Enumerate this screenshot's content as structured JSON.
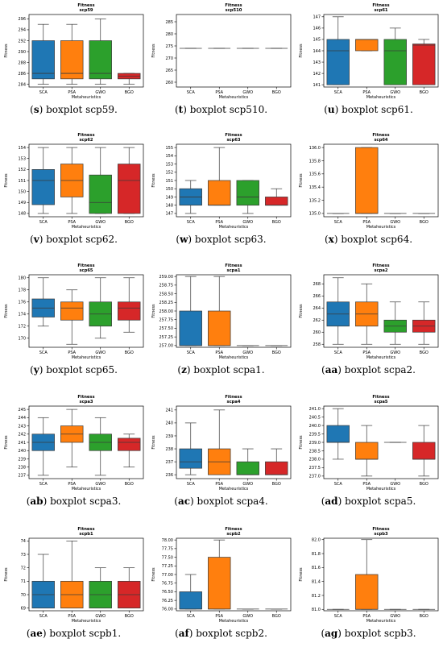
{
  "colors": {
    "SCA": "#1f77b4",
    "PSA": "#ff7f0e",
    "GWO": "#2ca02c",
    "BGO": "#d62728"
  },
  "chart_data": [
    {
      "type": "boxplot",
      "label": "s",
      "caption": "boxplot scp59.",
      "title": "Fitness",
      "subtitle": "scp59",
      "xlabel": "Metaheuristics",
      "ylabel": "Fitness",
      "categories": [
        "SCA",
        "PSA",
        "GWO",
        "BGO"
      ],
      "ylim": [
        283.5,
        296.8
      ],
      "yticks": [
        284,
        286,
        288,
        290,
        292,
        294,
        296
      ],
      "yticklabels": [
        "284",
        "286",
        "288",
        "290",
        "292",
        "294",
        "296"
      ],
      "boxes": [
        {
          "min": 284,
          "q1": 285,
          "median": 286,
          "q3": 292,
          "max": 295
        },
        {
          "min": 284,
          "q1": 285,
          "median": 286,
          "q3": 292,
          "max": 295
        },
        {
          "min": 284,
          "q1": 285,
          "median": 286,
          "q3": 292,
          "max": 296
        },
        {
          "min": 284,
          "q1": 285,
          "median": 285.5,
          "q3": 286,
          "max": 286
        }
      ]
    },
    {
      "type": "boxplot",
      "label": "t",
      "caption": "boxplot scp510.",
      "title": "Fitness",
      "subtitle": "scp510",
      "xlabel": "Metaheuristics",
      "ylabel": "Fitness",
      "categories": [
        "SCA",
        "PSA",
        "GWO",
        "BGO"
      ],
      "ylim": [
        258,
        288
      ],
      "yticks": [
        260,
        265,
        270,
        275,
        280,
        285
      ],
      "yticklabels": [
        "260",
        "265",
        "270",
        "275",
        "280",
        "285"
      ],
      "boxes": [
        {
          "min": 274,
          "q1": 274,
          "median": 274,
          "q3": 274,
          "max": 274
        },
        {
          "min": 274,
          "q1": 274,
          "median": 274,
          "q3": 274,
          "max": 274
        },
        {
          "min": 274,
          "q1": 274,
          "median": 274,
          "q3": 274,
          "max": 274
        },
        {
          "min": 274,
          "q1": 274,
          "median": 274,
          "q3": 274,
          "max": 274
        }
      ]
    },
    {
      "type": "boxplot",
      "label": "u",
      "caption": "boxplot scp61.",
      "title": "Fitness",
      "subtitle": "scp61",
      "xlabel": "Metaheuristics",
      "ylabel": "Fitness",
      "categories": [
        "SCA",
        "PSA",
        "GWO",
        "BGO"
      ],
      "ylim": [
        140.8,
        147.2
      ],
      "yticks": [
        141,
        142,
        143,
        144,
        145,
        146,
        147
      ],
      "yticklabels": [
        "141",
        "142",
        "143",
        "144",
        "145",
        "146",
        "147"
      ],
      "boxes": [
        {
          "min": 141,
          "q1": 141,
          "median": 144,
          "q3": 145,
          "max": 147
        },
        {
          "min": 144,
          "q1": 144,
          "median": 145,
          "q3": 145,
          "max": 145
        },
        {
          "min": 141,
          "q1": 141,
          "median": 144,
          "q3": 145,
          "max": 146
        },
        {
          "min": 141,
          "q1": 141,
          "median": 144.5,
          "q3": 144.6,
          "max": 145
        }
      ]
    },
    {
      "type": "boxplot",
      "label": "v",
      "caption": "boxplot scp62.",
      "title": "Fitness",
      "subtitle": "scp62",
      "xlabel": "Metaheuristics",
      "ylabel": "Fitness",
      "categories": [
        "SCA",
        "PSA",
        "GWO",
        "BGO"
      ],
      "ylim": [
        147.7,
        154.3
      ],
      "yticks": [
        148,
        149,
        150,
        151,
        152,
        153,
        154
      ],
      "yticklabels": [
        "148",
        "149",
        "150",
        "151",
        "152",
        "153",
        "154"
      ],
      "boxes": [
        {
          "min": 148,
          "q1": 148.8,
          "median": 151,
          "q3": 152,
          "max": 154
        },
        {
          "min": 148,
          "q1": 149.5,
          "median": 151,
          "q3": 152.5,
          "max": 154
        },
        {
          "min": 148,
          "q1": 148,
          "median": 149,
          "q3": 151.5,
          "max": 154
        },
        {
          "min": 148,
          "q1": 148,
          "median": 151,
          "q3": 152.5,
          "max": 154
        }
      ]
    },
    {
      "type": "boxplot",
      "label": "w",
      "caption": "boxplot scp63.",
      "title": "Fitness",
      "subtitle": "scp63",
      "xlabel": "Metaheuristics",
      "ylabel": "Fitness",
      "categories": [
        "SCA",
        "PSA",
        "GWO",
        "BGO"
      ],
      "ylim": [
        146.6,
        155.4
      ],
      "yticks": [
        147,
        148,
        149,
        150,
        151,
        152,
        153,
        154,
        155
      ],
      "yticklabels": [
        "147",
        "148",
        "149",
        "150",
        "151",
        "152",
        "153",
        "154",
        "155"
      ],
      "boxes": [
        {
          "min": 147,
          "q1": 148,
          "median": 149,
          "q3": 150,
          "max": 151
        },
        {
          "min": 148,
          "q1": 148,
          "median": 148,
          "q3": 151,
          "max": 155
        },
        {
          "min": 147,
          "q1": 148,
          "median": 149,
          "q3": 151,
          "max": 151
        },
        {
          "min": 148,
          "q1": 148,
          "median": 148,
          "q3": 149,
          "max": 150
        }
      ]
    },
    {
      "type": "boxplot",
      "label": "x",
      "caption": "boxplot scp64.",
      "title": "Fitness",
      "subtitle": "scp64",
      "xlabel": "Metaheuristics",
      "ylabel": "Fitness",
      "categories": [
        "SCA",
        "PSA",
        "GWO",
        "BGO"
      ],
      "ylim": [
        134.95,
        136.05
      ],
      "yticks": [
        135.0,
        135.2,
        135.4,
        135.6,
        135.8,
        136.0
      ],
      "yticklabels": [
        "135.0",
        "135.2",
        "135.4",
        "135.6",
        "135.8",
        "136.0"
      ],
      "boxes": [
        {
          "min": 135,
          "q1": 135,
          "median": 135,
          "q3": 135,
          "max": 135
        },
        {
          "min": 135,
          "q1": 135,
          "median": 135,
          "q3": 136,
          "max": 136
        },
        {
          "min": 135,
          "q1": 135,
          "median": 135,
          "q3": 135,
          "max": 135
        },
        {
          "min": 135,
          "q1": 135,
          "median": 135,
          "q3": 135,
          "max": 135
        }
      ]
    },
    {
      "type": "boxplot",
      "label": "y",
      "caption": "boxplot scp65.",
      "title": "Fitness",
      "subtitle": "scp65",
      "xlabel": "Metaheuristics",
      "ylabel": "Fitness",
      "categories": [
        "SCA",
        "PSA",
        "GWO",
        "BGO"
      ],
      "ylim": [
        168.5,
        180.5
      ],
      "yticks": [
        170,
        172,
        174,
        176,
        178,
        180
      ],
      "yticklabels": [
        "170",
        "172",
        "174",
        "176",
        "178",
        "180"
      ],
      "boxes": [
        {
          "min": 172,
          "q1": 173.5,
          "median": 175,
          "q3": 176.5,
          "max": 180
        },
        {
          "min": 169,
          "q1": 173,
          "median": 175,
          "q3": 176,
          "max": 178
        },
        {
          "min": 170,
          "q1": 172,
          "median": 174,
          "q3": 176,
          "max": 180
        },
        {
          "min": 171,
          "q1": 173,
          "median": 175,
          "q3": 176,
          "max": 180
        }
      ]
    },
    {
      "type": "boxplot",
      "label": "z",
      "caption": "boxplot scpa1.",
      "title": "Fitness",
      "subtitle": "scpa1",
      "xlabel": "Metaheuristics",
      "ylabel": "Fitness",
      "categories": [
        "SCA",
        "PSA",
        "GWO",
        "BGO"
      ],
      "ylim": [
        256.95,
        259.05
      ],
      "yticks": [
        257.0,
        257.25,
        257.5,
        257.75,
        258.0,
        258.25,
        258.5,
        258.75,
        259.0
      ],
      "yticklabels": [
        "257.00",
        "257.25",
        "257.50",
        "257.75",
        "258.00",
        "258.25",
        "258.50",
        "258.75",
        "259.00"
      ],
      "boxes": [
        {
          "min": 257,
          "q1": 257,
          "median": 257,
          "q3": 258,
          "max": 259
        },
        {
          "min": 257,
          "q1": 257,
          "median": 257,
          "q3": 258,
          "max": 259
        },
        {
          "min": 257,
          "q1": 257,
          "median": 257,
          "q3": 257,
          "max": 257
        },
        {
          "min": 257,
          "q1": 257,
          "median": 257,
          "q3": 257,
          "max": 257
        }
      ]
    },
    {
      "type": "boxplot",
      "label": "aa",
      "caption": "boxplot scpa2.",
      "title": "Fitness",
      "subtitle": "scpa2",
      "xlabel": "Metaheuristics",
      "ylabel": "Fitness",
      "categories": [
        "SCA",
        "PSA",
        "GWO",
        "BGO"
      ],
      "ylim": [
        257.5,
        269.5
      ],
      "yticks": [
        258,
        260,
        262,
        264,
        266,
        268
      ],
      "yticklabels": [
        "258",
        "260",
        "262",
        "264",
        "266",
        "268"
      ],
      "boxes": [
        {
          "min": 258,
          "q1": 261,
          "median": 263,
          "q3": 265,
          "max": 269
        },
        {
          "min": 258,
          "q1": 261,
          "median": 263,
          "q3": 265,
          "max": 268
        },
        {
          "min": 258,
          "q1": 260,
          "median": 261,
          "q3": 262,
          "max": 265
        },
        {
          "min": 258,
          "q1": 260,
          "median": 261,
          "q3": 262,
          "max": 265
        }
      ]
    },
    {
      "type": "boxplot",
      "label": "ab",
      "caption": "boxplot scpa3.",
      "title": "Fitness",
      "subtitle": "scpa3",
      "xlabel": "Metaheuristics",
      "ylabel": "Fitness",
      "categories": [
        "SCA",
        "PSA",
        "GWO",
        "BGO"
      ],
      "ylim": [
        236.6,
        245.4
      ],
      "yticks": [
        237,
        238,
        239,
        240,
        241,
        242,
        243,
        244,
        245
      ],
      "yticklabels": [
        "237",
        "238",
        "239",
        "240",
        "241",
        "242",
        "243",
        "244",
        "245"
      ],
      "boxes": [
        {
          "min": 237,
          "q1": 240,
          "median": 241,
          "q3": 242,
          "max": 244
        },
        {
          "min": 238,
          "q1": 241,
          "median": 242,
          "q3": 243,
          "max": 245
        },
        {
          "min": 237,
          "q1": 240,
          "median": 241,
          "q3": 242,
          "max": 244
        },
        {
          "min": 238,
          "q1": 240,
          "median": 241,
          "q3": 241.5,
          "max": 242
        }
      ]
    },
    {
      "type": "boxplot",
      "label": "ac",
      "caption": "boxplot scpa4.",
      "title": "Fitness",
      "subtitle": "scpa4",
      "xlabel": "Metaheuristics",
      "ylabel": "Fitness",
      "categories": [
        "SCA",
        "PSA",
        "GWO",
        "BGO"
      ],
      "ylim": [
        235.7,
        241.3
      ],
      "yticks": [
        236,
        237,
        238,
        239,
        240,
        241
      ],
      "yticklabels": [
        "236",
        "237",
        "238",
        "239",
        "240",
        "241"
      ],
      "boxes": [
        {
          "min": 236,
          "q1": 236.5,
          "median": 237,
          "q3": 238,
          "max": 240
        },
        {
          "min": 236,
          "q1": 236,
          "median": 237,
          "q3": 238,
          "max": 241
        },
        {
          "min": 236,
          "q1": 236,
          "median": 236,
          "q3": 237,
          "max": 238
        },
        {
          "min": 236,
          "q1": 236,
          "median": 236,
          "q3": 237,
          "max": 238
        }
      ]
    },
    {
      "type": "boxplot",
      "label": "ad",
      "caption": "boxplot scpa5.",
      "title": "Fitness",
      "subtitle": "scpa5",
      "xlabel": "Metaheuristics",
      "ylabel": "Fitness",
      "categories": [
        "SCA",
        "PSA",
        "GWO",
        "BGO"
      ],
      "ylim": [
        236.85,
        241.15
      ],
      "yticks": [
        237.0,
        237.5,
        238.0,
        238.5,
        239.0,
        239.5,
        240.0,
        240.5,
        241.0
      ],
      "yticklabels": [
        "237.0",
        "237.5",
        "238.0",
        "238.5",
        "239.0",
        "239.5",
        "240.0",
        "240.5",
        "241.0"
      ],
      "boxes": [
        {
          "min": 238,
          "q1": 239,
          "median": 239,
          "q3": 240,
          "max": 241
        },
        {
          "min": 237,
          "q1": 238,
          "median": 238,
          "q3": 239,
          "max": 240
        },
        {
          "min": 239,
          "q1": 239,
          "median": 239,
          "q3": 239,
          "max": 239
        },
        {
          "min": 237,
          "q1": 238,
          "median": 238,
          "q3": 239,
          "max": 240
        }
      ]
    },
    {
      "type": "boxplot",
      "label": "ae",
      "caption": "boxplot scpb1.",
      "title": "Fitness",
      "subtitle": "scpb1",
      "xlabel": "Metaheuristics",
      "ylabel": "Fitness",
      "categories": [
        "SCA",
        "PSA",
        "GWO",
        "BGO"
      ],
      "ylim": [
        68.8,
        74.2
      ],
      "yticks": [
        69,
        70,
        71,
        72,
        73,
        74
      ],
      "yticklabels": [
        "69",
        "70",
        "71",
        "72",
        "73",
        "74"
      ],
      "boxes": [
        {
          "min": 69,
          "q1": 69,
          "median": 70,
          "q3": 71,
          "max": 73
        },
        {
          "min": 69,
          "q1": 69,
          "median": 70,
          "q3": 71,
          "max": 74
        },
        {
          "min": 69,
          "q1": 69,
          "median": 70,
          "q3": 71,
          "max": 72
        },
        {
          "min": 69,
          "q1": 69,
          "median": 70,
          "q3": 71,
          "max": 72
        }
      ]
    },
    {
      "type": "boxplot",
      "label": "af",
      "caption": "boxplot scpb2.",
      "title": "Fitness",
      "subtitle": "scpb2",
      "xlabel": "Metaheuristics",
      "ylabel": "Fitness",
      "categories": [
        "SCA",
        "PSA",
        "GWO",
        "BGO"
      ],
      "ylim": [
        75.95,
        78.05
      ],
      "yticks": [
        76.0,
        76.25,
        76.5,
        76.75,
        77.0,
        77.25,
        77.5,
        77.75,
        78.0
      ],
      "yticklabels": [
        "76.00",
        "76.25",
        "76.50",
        "76.75",
        "77.00",
        "77.25",
        "77.50",
        "77.75",
        "78.00"
      ],
      "boxes": [
        {
          "min": 76,
          "q1": 76,
          "median": 76,
          "q3": 76.5,
          "max": 77
        },
        {
          "min": 76,
          "q1": 76,
          "median": 76,
          "q3": 77.5,
          "max": 78
        },
        {
          "min": 76,
          "q1": 76,
          "median": 76,
          "q3": 76,
          "max": 76
        },
        {
          "min": 76,
          "q1": 76,
          "median": 76,
          "q3": 76,
          "max": 76
        }
      ]
    },
    {
      "type": "boxplot",
      "label": "ag",
      "caption": "boxplot scpb3.",
      "title": "Fitness",
      "subtitle": "scpb3",
      "xlabel": "Metaheuristics",
      "ylabel": "Fitness",
      "categories": [
        "SCA",
        "PSA",
        "GWO",
        "BGO"
      ],
      "ylim": [
        80.98,
        82.02
      ],
      "yticks": [
        81.0,
        81.2,
        81.4,
        81.6,
        81.8,
        82.0
      ],
      "yticklabels": [
        "81.0",
        "81.2",
        "81.4",
        "81.6",
        "81.8",
        "82.0"
      ],
      "boxes": [
        {
          "min": 81,
          "q1": 81,
          "median": 81,
          "q3": 81,
          "max": 81
        },
        {
          "min": 81,
          "q1": 81,
          "median": 81,
          "q3": 81.5,
          "max": 82
        },
        {
          "min": 81,
          "q1": 81,
          "median": 81,
          "q3": 81,
          "max": 81
        },
        {
          "min": 81,
          "q1": 81,
          "median": 81,
          "q3": 81,
          "max": 81
        }
      ]
    }
  ]
}
